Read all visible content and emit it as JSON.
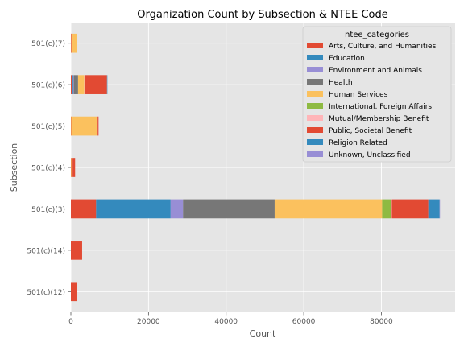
{
  "chart_data": {
    "type": "bar",
    "orientation": "horizontal",
    "stacked": true,
    "title": "Organization Count by Subsection & NTEE Code",
    "xlabel": "Count",
    "ylabel": "Subsection",
    "xlim": [
      0,
      99000
    ],
    "xticks": [
      0,
      20000,
      40000,
      60000,
      80000
    ],
    "xtick_labels": [
      "0",
      "20000",
      "40000",
      "60000",
      "80000"
    ],
    "grid": true,
    "legend_position": "top-right",
    "legend_title": "ntee_categories",
    "categories": [
      "501(c)(7)",
      "501(c)(6)",
      "501(c)(5)",
      "501(c)(4)",
      "501(c)(3)",
      "501(c)(14)",
      "501(c)(12)"
    ],
    "series": [
      {
        "name": "Arts, Culture, and Humanities",
        "color": "#E24A33",
        "values": [
          150,
          350,
          80,
          90,
          6500,
          0,
          0
        ]
      },
      {
        "name": "Education",
        "color": "#348ABD",
        "values": [
          0,
          250,
          0,
          0,
          19200,
          0,
          0
        ]
      },
      {
        "name": "Environment and Animals",
        "color": "#988ED5",
        "values": [
          0,
          150,
          0,
          0,
          3200,
          0,
          0
        ]
      },
      {
        "name": "Health",
        "color": "#777777",
        "values": [
          0,
          1100,
          0,
          0,
          23600,
          0,
          0
        ]
      },
      {
        "name": "Human Services",
        "color": "#FBC15E",
        "values": [
          1500,
          1600,
          6800,
          350,
          27700,
          0,
          0
        ]
      },
      {
        "name": "International, Foreign Affairs",
        "color": "#8EBA42",
        "values": [
          0,
          0,
          0,
          0,
          2200,
          0,
          0
        ]
      },
      {
        "name": "Mutual/Membership Benefit",
        "color": "#FFB5B8",
        "values": [
          0,
          150,
          0,
          0,
          300,
          0,
          0
        ]
      },
      {
        "name": "Public, Societal Benefit",
        "color": "#E24A33",
        "values": [
          0,
          5700,
          250,
          650,
          9400,
          2900,
          1600
        ]
      },
      {
        "name": "Religion Related",
        "color": "#348ABD",
        "values": [
          0,
          100,
          0,
          0,
          2900,
          0,
          0
        ]
      },
      {
        "name": "Unknown, Unclassified",
        "color": "#988ED5",
        "values": [
          0,
          0,
          0,
          0,
          50,
          0,
          0
        ]
      }
    ],
    "colors": {
      "axes_background": "#E5E5E5",
      "grid": "#FFFFFF",
      "tick_text": "#555555"
    }
  }
}
